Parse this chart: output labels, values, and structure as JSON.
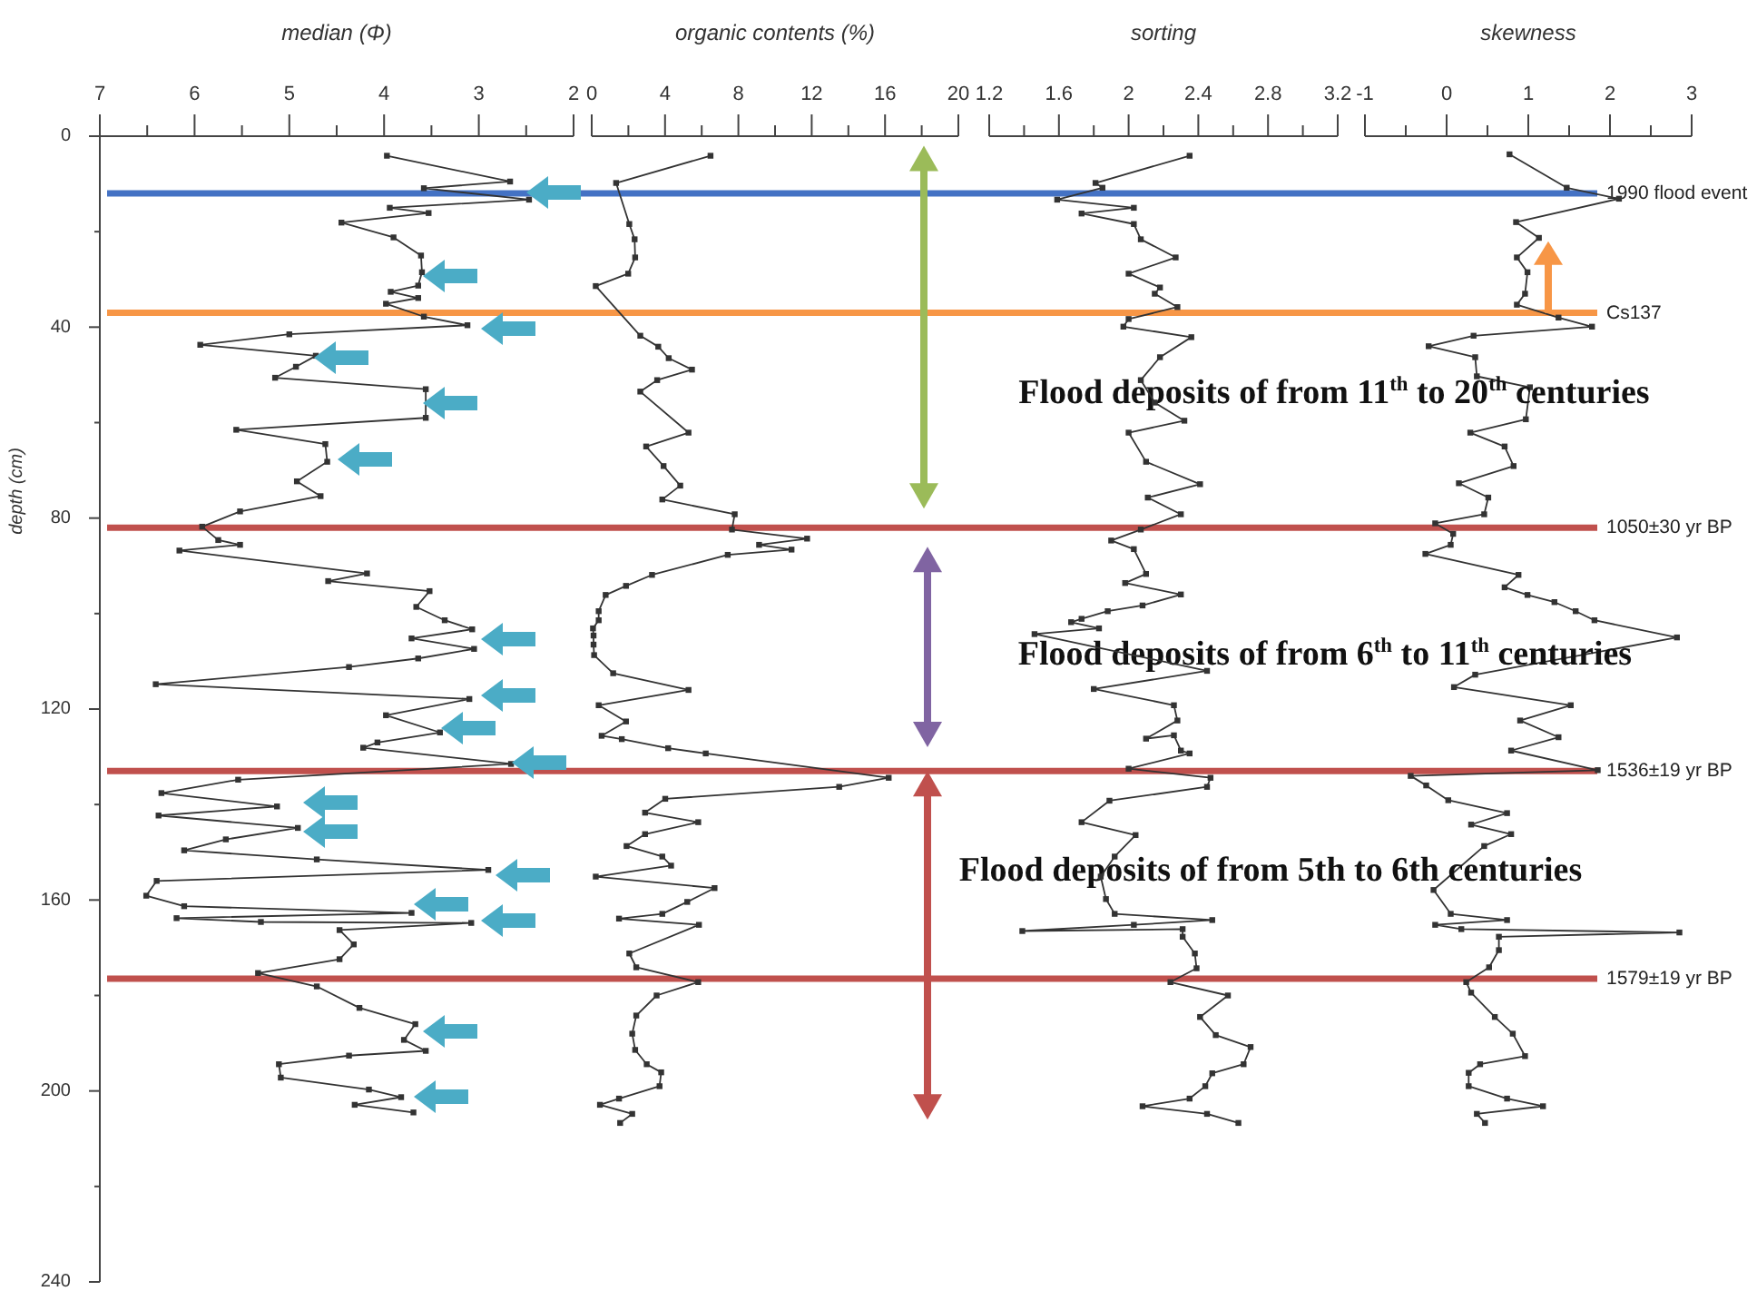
{
  "chart_data": [
    {
      "type": "line",
      "xlabel": "median (Φ)",
      "ylabel": "depth (cm)",
      "xlim": [
        7,
        2
      ],
      "xticks": [
        7,
        {
          "value": 6.5,
          "label": null
        },
        6,
        {
          "value": 5.5,
          "label": null
        },
        5,
        {
          "value": 4.5,
          "label": null
        },
        4,
        {
          "value": 3.5,
          "label": null
        },
        3,
        {
          "value": 2.5,
          "label": null
        },
        2
      ],
      "ylim": [
        240,
        0
      ],
      "yticks": [
        0,
        {
          "value": 20,
          "label": null
        },
        40,
        {
          "value": 60,
          "label": null
        },
        80,
        {
          "value": 100,
          "label": null
        },
        120,
        {
          "value": 140,
          "label": null
        },
        160,
        {
          "value": 180,
          "label": null
        },
        200,
        {
          "value": 220,
          "label": null
        },
        240
      ],
      "color": "#333333",
      "marker": "square",
      "x": [
        3.97,
        2.67,
        3.58,
        2.47,
        3.94,
        3.53,
        4.45,
        3.9,
        3.61,
        3.6,
        3.64,
        3.93,
        3.64,
        3.98,
        3.58,
        3.12,
        5.0,
        5.94,
        4.72,
        4.93,
        5.15,
        3.56,
        3.56,
        5.56,
        4.62,
        4.6,
        4.92,
        4.67,
        5.52,
        5.92,
        5.75,
        5.52,
        6.16,
        4.18,
        4.59,
        3.52,
        3.66,
        3.36,
        3.07,
        3.71,
        3.05,
        3.64,
        4.37,
        6.41,
        3.1,
        3.98,
        3.41,
        4.07,
        4.22,
        2.66,
        5.54,
        6.35,
        5.13,
        6.38,
        4.91,
        5.67,
        6.11,
        4.71,
        2.9,
        6.4,
        6.51,
        6.11,
        3.71,
        6.19,
        5.3,
        3.08,
        4.47,
        4.32,
        4.47,
        5.33,
        4.71,
        4.26,
        3.67,
        3.79,
        3.56,
        4.37,
        5.11,
        5.09,
        4.16,
        3.82,
        4.31,
        3.69
      ],
      "values": [
        4.1,
        9.5,
        10.9,
        13.3,
        15,
        16.1,
        18.1,
        21.2,
        25,
        28.5,
        31.3,
        32.6,
        33.9,
        35.1,
        37.8,
        39.6,
        41.5,
        43.7,
        46,
        48.3,
        50.6,
        53,
        59,
        61.5,
        64.5,
        68.2,
        72.3,
        75.4,
        78.6,
        81.8,
        84.6,
        85.6,
        86.8,
        91.6,
        93.2,
        95.3,
        98.6,
        101.4,
        103.3,
        105.2,
        107.4,
        109.4,
        111.2,
        114.8,
        117.9,
        121.3,
        124.9,
        127,
        128.1,
        131.5,
        134.8,
        137.6,
        140.4,
        142.3,
        144.9,
        147.3,
        149.6,
        151.5,
        153.7,
        156,
        159.1,
        161.3,
        162.7,
        163.8,
        164.6,
        164.8,
        166.3,
        169.3,
        172.4,
        175.3,
        178.1,
        182.6,
        186,
        189.3,
        191.6,
        192.6,
        194.4,
        197.2,
        199.7,
        201.3,
        202.9,
        204.5
      ]
    },
    {
      "type": "line",
      "xlabel": "organic contents (%)",
      "xlim": [
        0,
        20
      ],
      "xticks": [
        0,
        {
          "value": 2,
          "label": null
        },
        4,
        {
          "value": 6,
          "label": null
        },
        8,
        {
          "value": 10,
          "label": null
        },
        12,
        {
          "value": 14,
          "label": null
        },
        16,
        {
          "value": 18,
          "label": null
        },
        20
      ],
      "ylim": [
        240,
        0
      ],
      "tick_labels": "x",
      "color": "#333333",
      "marker": "square",
      "x": [
        6.48,
        1.33,
        2.05,
        2.34,
        2.37,
        1.99,
        0.22,
        2.65,
        3.63,
        4.2,
        5.47,
        3.57,
        2.65,
        5.28,
        2.97,
        3.92,
        4.83,
        3.85,
        7.8,
        7.65,
        11.75,
        9.13,
        10.9,
        7.42,
        3.29,
        1.87,
        0.76,
        0.38,
        0.38,
        0.07,
        0.1,
        0.1,
        0.13,
        1.17,
        5.28,
        0.38,
        1.87,
        0.54,
        1.64,
        4.17,
        6.22,
        16.2,
        13.5,
        4.01,
        2.91,
        5.81,
        2.91,
        1.9,
        3.85,
        4.33,
        0.22,
        6.7,
        5.21,
        3.85,
        1.49,
        5.85,
        2.05,
        2.43,
        5.81,
        3.54,
        2.43,
        2.21,
        2.37,
        3.0,
        3.79,
        3.7,
        1.49,
        0.45,
        2.21,
        1.55
      ],
      "values": [
        4.1,
        9.8,
        18.4,
        21.6,
        25.4,
        28.8,
        31.4,
        41.8,
        44.1,
        46.5,
        48.9,
        51.1,
        53.5,
        62.1,
        65,
        69.1,
        73.2,
        76.1,
        79.2,
        82.4,
        84.3,
        85.6,
        86.6,
        87.7,
        91.9,
        94.2,
        96.1,
        99.5,
        101.4,
        103.1,
        104.6,
        106.5,
        108.7,
        112.5,
        116,
        119.2,
        122.6,
        125.6,
        126.3,
        128.2,
        129.3,
        134.4,
        136.3,
        138.8,
        141.7,
        143.7,
        146.2,
        148.7,
        150.9,
        152.8,
        155.1,
        157.5,
        160.4,
        162.9,
        163.9,
        165.2,
        171.2,
        174.1,
        177.2,
        180,
        184.2,
        188,
        191.4,
        194.4,
        196.1,
        199,
        201.6,
        202.9,
        204.8,
        206.7
      ]
    },
    {
      "type": "line",
      "xlabel": "sorting",
      "xlim": [
        1.2,
        3.2
      ],
      "xticks": [
        1.2,
        {
          "value": 1.4,
          "label": null
        },
        1.6,
        {
          "value": 1.8,
          "label": null
        },
        2,
        {
          "value": 2.2,
          "label": null
        },
        2.4,
        {
          "value": 2.6,
          "label": null
        },
        2.8,
        {
          "value": 3,
          "label": null
        },
        3.2
      ],
      "ylim": [
        240,
        0
      ],
      "tick_labels": "x",
      "color": "#333333",
      "marker": "square",
      "x": [
        2.35,
        1.81,
        1.85,
        1.59,
        2.03,
        1.73,
        2.03,
        2.07,
        2.27,
        2.0,
        2.18,
        2.15,
        2.28,
        2.0,
        1.97,
        2.36,
        2.18,
        2.07,
        2.15,
        2.32,
        2.0,
        2.1,
        2.41,
        2.11,
        2.3,
        2.07,
        1.9,
        2.03,
        2.1,
        1.98,
        2.3,
        2.08,
        1.88,
        1.73,
        1.67,
        1.83,
        1.46,
        2.45,
        1.8,
        2.26,
        2.28,
        2.1,
        2.26,
        2.3,
        2.35,
        2.0,
        2.47,
        2.45,
        1.89,
        1.73,
        2.04,
        1.92,
        1.84,
        1.87,
        1.92,
        2.48,
        2.03,
        1.39,
        2.31,
        2.31,
        2.38,
        2.39,
        2.24,
        2.57,
        2.41,
        2.5,
        2.7,
        2.66,
        2.48,
        2.44,
        2.35,
        2.08,
        2.45,
        2.63
      ],
      "values": [
        4.1,
        9.8,
        10.8,
        13.3,
        15,
        16.2,
        18.4,
        21.6,
        25.4,
        28.8,
        31.7,
        33,
        35.8,
        38.3,
        39.9,
        42.1,
        46.3,
        51.1,
        55.8,
        59.6,
        62.1,
        68.2,
        72.9,
        75.7,
        79.2,
        82.4,
        84.7,
        86.5,
        91.7,
        93.6,
        96,
        98.3,
        99.5,
        101.1,
        101.8,
        103.1,
        104.3,
        112,
        115.8,
        119.2,
        122.4,
        126.2,
        125.5,
        128.7,
        129.3,
        132.5,
        134.4,
        136.3,
        139.2,
        143.7,
        146.4,
        150.9,
        155.1,
        159.8,
        162.9,
        164.2,
        165.2,
        166.5,
        166.1,
        167.7,
        171.2,
        174.3,
        177.2,
        180,
        184.5,
        188.3,
        190.8,
        194.4,
        196.3,
        199,
        201.6,
        203.2,
        204.8,
        206.7
      ]
    },
    {
      "type": "line",
      "xlabel": "skewness",
      "xlim": [
        -1,
        3
      ],
      "xticks": [
        -1,
        {
          "value": -0.5,
          "label": null
        },
        0,
        {
          "value": 0.5,
          "label": null
        },
        1,
        {
          "value": 1.5,
          "label": null
        },
        2,
        {
          "value": 2.5,
          "label": null
        },
        3
      ],
      "ylim": [
        240,
        0
      ],
      "tick_labels": "x",
      "color": "#333333",
      "marker": "square",
      "x": [
        0.77,
        1.47,
        2.11,
        0.85,
        1.13,
        0.86,
        0.99,
        0.96,
        0.86,
        1.37,
        1.78,
        0.33,
        -0.22,
        0.35,
        0.37,
        1.02,
        0.97,
        0.29,
        0.71,
        0.82,
        0.15,
        0.51,
        0.46,
        -0.14,
        0.08,
        0.05,
        -0.26,
        0.88,
        0.71,
        0.99,
        1.32,
        1.58,
        1.81,
        2.82,
        0.35,
        0.09,
        1.52,
        0.9,
        1.37,
        0.79,
        1.85,
        -0.44,
        -0.25,
        0.02,
        0.74,
        0.3,
        0.79,
        0.46,
        -0.16,
        0.05,
        0.74,
        -0.14,
        0.18,
        2.85,
        0.64,
        0.64,
        0.52,
        0.24,
        0.3,
        0.59,
        0.81,
        0.96,
        0.41,
        0.27,
        0.27,
        0.74,
        1.18,
        0.37,
        0.47
      ],
      "values": [
        3.8,
        10.8,
        13.1,
        18,
        21.3,
        25.4,
        28.5,
        33,
        35.3,
        38,
        39.9,
        41.8,
        44,
        46.3,
        50.3,
        52.6,
        59.3,
        62.1,
        65,
        69.1,
        72.7,
        75.7,
        79.2,
        81.1,
        83.3,
        85.6,
        87.5,
        91.9,
        94.5,
        96.1,
        97.6,
        99.5,
        101.4,
        105,
        112.8,
        115.4,
        119.2,
        122.4,
        125.9,
        128.7,
        132.8,
        134,
        136,
        139.1,
        141.8,
        144.2,
        146.2,
        148.7,
        157.9,
        162.9,
        164.2,
        165.2,
        166.1,
        166.8,
        167.7,
        170.5,
        174.1,
        177.2,
        179.4,
        184.5,
        188,
        192.7,
        194.4,
        196.2,
        199,
        201.6,
        203.2,
        204.8,
        206.7
      ],
      "ref_lines": [
        {
          "axis": "y",
          "value": 12,
          "label": "1990 flood event",
          "color": "#4472c4"
        },
        {
          "axis": "y",
          "value": 37,
          "label": "Cs137",
          "color": "#f79646"
        },
        {
          "axis": "y",
          "value": 82,
          "label": "1050±30 yr BP",
          "color": "#c0504d"
        },
        {
          "axis": "y",
          "value": 133,
          "label": "1536±19 yr BP",
          "color": "#c0504d"
        },
        {
          "axis": "y",
          "value": 176.5,
          "label": "1579±19 yr BP",
          "color": "#c0504d"
        }
      ],
      "annotations": [
        "Flood deposits of from 11$^{th}$ to 20$^{th}$ centuries",
        "Flood deposits of from 6$^{th}$ to 11$^{th}$ centuries",
        "Flood deposits of from 5th to 6th centuries"
      ]
    }
  ]
}
